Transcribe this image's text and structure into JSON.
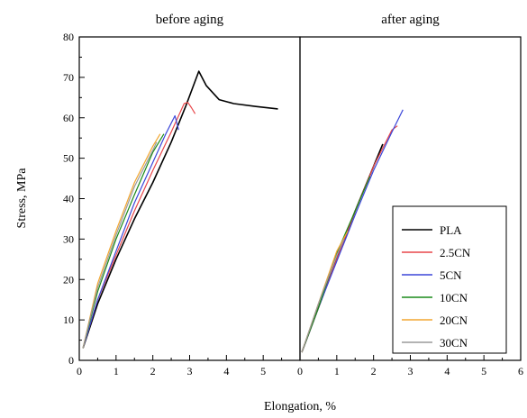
{
  "chart_data": {
    "type": "line",
    "xlabel": "Elongation, %",
    "ylabel": "Stress, MPa",
    "ylim": [
      0,
      80
    ],
    "yticks": [
      "0",
      "10",
      "20",
      "30",
      "40",
      "50",
      "60",
      "70",
      "80"
    ],
    "legend_placement": "bottom-right of right panel",
    "grid": false,
    "series_styles": [
      {
        "name": "PLA",
        "color": "#000000"
      },
      {
        "name": "2.5CN",
        "color": "#e8474a"
      },
      {
        "name": "5CN",
        "color": "#3b46d9"
      },
      {
        "name": "10CN",
        "color": "#1a8a1a"
      },
      {
        "name": "20CN",
        "color": "#f2a630"
      },
      {
        "name": "30CN",
        "color": "#9a9a9a"
      }
    ],
    "panels": [
      {
        "title": "before aging",
        "xlim": [
          0,
          6
        ],
        "xticks": [
          "0",
          "1",
          "2",
          "3",
          "4",
          "5"
        ],
        "series": [
          {
            "name": "PLA",
            "x": [
              0.1,
              0.5,
              1,
              1.5,
              2,
              2.5,
              2.9,
              3.25,
              3.45,
              3.8,
              4.2,
              4.8,
              5.4
            ],
            "y": [
              3,
              14,
              25,
              35,
              44,
              54,
              63,
              71.5,
              68,
              64.5,
              63.5,
              62.8,
              62.2
            ]
          },
          {
            "name": "2.5CN",
            "x": [
              0.1,
              0.5,
              1,
              1.5,
              2,
              2.5,
              2.85,
              2.95,
              3.05,
              3.15
            ],
            "y": [
              3,
              15,
              26,
              37,
              47,
              56.5,
              63.5,
              63.8,
              62.5,
              61
            ]
          },
          {
            "name": "5CN",
            "x": [
              0.1,
              0.5,
              1,
              1.5,
              2,
              2.35,
              2.6,
              2.7
            ],
            "y": [
              3,
              15,
              27,
              39,
              49,
              56,
              60.5,
              57
            ]
          },
          {
            "name": "10CN",
            "x": [
              0.1,
              0.5,
              1,
              1.5,
              2,
              2.3
            ],
            "y": [
              3,
              17,
              30,
              41,
              51.5,
              56
            ]
          },
          {
            "name": "20CN",
            "x": [
              0.1,
              0.5,
              1,
              1.5,
              2,
              2.2
            ],
            "y": [
              3,
              19,
              32,
              44,
              53,
              56
            ]
          },
          {
            "name": "30CN",
            "x": [
              0.1,
              0.5,
              1,
              1.5,
              2,
              2.1
            ],
            "y": [
              3,
              18,
              31,
              43,
              52,
              54
            ]
          }
        ]
      },
      {
        "title": "after aging",
        "xlim": [
          0,
          6
        ],
        "xticks": [
          "0",
          "1",
          "2",
          "3",
          "4",
          "5",
          "6"
        ],
        "series": [
          {
            "name": "PLA",
            "x": [
              0.05,
              0.5,
              1,
              1.5,
              2,
              2.25
            ],
            "y": [
              2,
              13,
              25,
              37,
              48,
              53.5
            ]
          },
          {
            "name": "2.5CN",
            "x": [
              0.05,
              0.5,
              1,
              1.5,
              2,
              2.5,
              2.65
            ],
            "y": [
              2,
              13,
              25,
              37,
              48,
              57,
              58
            ]
          },
          {
            "name": "5CN",
            "x": [
              0.05,
              0.5,
              1,
              1.5,
              2,
              2.5,
              2.8
            ],
            "y": [
              2,
              13,
              24.5,
              36,
              47,
              56.5,
              62
            ]
          },
          {
            "name": "10CN",
            "x": [
              0.05,
              0.5,
              1,
              1.5,
              1.9
            ],
            "y": [
              2,
              13,
              26.5,
              37,
              45.5
            ]
          },
          {
            "name": "20CN",
            "x": [
              0.05,
              0.5,
              1,
              1.3
            ],
            "y": [
              2,
              14,
              27,
              32
            ]
          },
          {
            "name": "30CN",
            "x": [
              0.05,
              0.5,
              1,
              1.2
            ],
            "y": [
              2,
              14,
              26,
              30
            ]
          }
        ]
      }
    ]
  }
}
